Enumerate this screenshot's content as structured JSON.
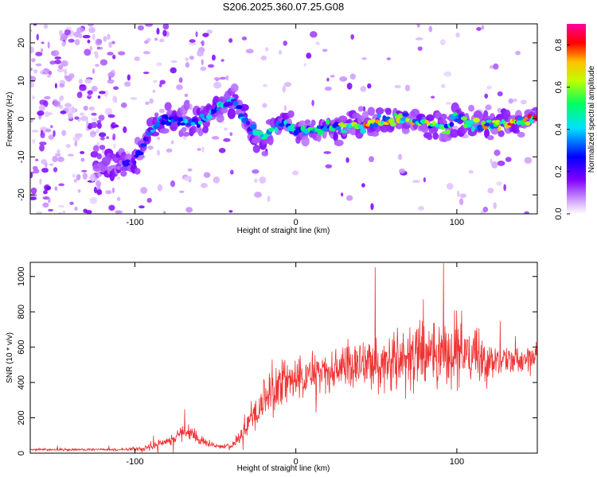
{
  "title": "S206.2025.360.07.25.G08",
  "chart_data": [
    {
      "type": "heatmap",
      "xlabel": "Height of straight line (km)",
      "ylabel": "Frequency (Hz)",
      "xlim": [
        -165,
        150
      ],
      "ylim": [
        -25,
        25
      ],
      "xticks": [
        -100,
        0,
        100
      ],
      "yticks": [
        -20,
        -10,
        0,
        10,
        20
      ],
      "colorbar": {
        "label": "Normalized spectral amplitude",
        "range": [
          0,
          0.9
        ],
        "ticks": [
          "0.0",
          "0.2",
          "0.4",
          "0.6",
          "0.8"
        ],
        "tick_values": [
          0.0,
          0.2,
          0.4,
          0.6,
          0.8
        ],
        "colors": [
          "#ffffff",
          "#8000ff",
          "#0000ff",
          "#00e0ff",
          "#00ff80",
          "#ffff00",
          "#ff0000",
          "#ff00a0"
        ]
      },
      "ridge": {
        "description_points_x": [
          -165,
          -110,
          -100,
          -90,
          -80,
          -60,
          -45,
          -38,
          -30,
          -20,
          -10,
          0,
          10,
          20,
          40,
          60,
          80,
          95,
          100,
          110,
          130,
          150
        ],
        "frequency_hz": [
          -12,
          -12,
          -11,
          -3,
          0,
          -1,
          4,
          5,
          -2,
          -5,
          -1,
          -3,
          -3,
          -2,
          -2,
          0,
          -1,
          -3,
          1,
          -2,
          -1,
          0
        ],
        "amplitude": [
          0.15,
          0.2,
          0.3,
          0.35,
          0.35,
          0.4,
          0.4,
          0.35,
          0.4,
          0.45,
          0.4,
          0.45,
          0.5,
          0.55,
          0.7,
          0.65,
          0.6,
          0.55,
          0.45,
          0.6,
          0.7,
          0.75
        ]
      }
    },
    {
      "type": "line",
      "xlabel": "Height of straight line (km)",
      "ylabel": "SNR (10 * v/v)",
      "xlim": [
        -165,
        150
      ],
      "ylim": [
        0,
        1080
      ],
      "xticks": [
        -100,
        0,
        100
      ],
      "yticks": [
        0,
        200,
        400,
        600,
        800,
        1000
      ],
      "series": [
        {
          "name": "SNR",
          "color": "#ee3333",
          "envelope_x": [
            -165,
            -110,
            -95,
            -80,
            -70,
            -60,
            -50,
            -40,
            -35,
            -30,
            -20,
            -10,
            0,
            10,
            20,
            30,
            40,
            50,
            60,
            70,
            80,
            90,
            100,
            110,
            120,
            130,
            140,
            150
          ],
          "envelope_mean": [
            20,
            20,
            25,
            60,
            130,
            80,
            40,
            40,
            80,
            180,
            280,
            380,
            420,
            450,
            460,
            480,
            500,
            510,
            520,
            540,
            550,
            560,
            560,
            550,
            530,
            520,
            520,
            540
          ],
          "envelope_amp": [
            10,
            10,
            15,
            50,
            80,
            40,
            20,
            20,
            60,
            120,
            170,
            200,
            180,
            170,
            170,
            180,
            180,
            200,
            230,
            260,
            250,
            250,
            300,
            230,
            150,
            110,
            100,
            110
          ]
        }
      ]
    }
  ]
}
